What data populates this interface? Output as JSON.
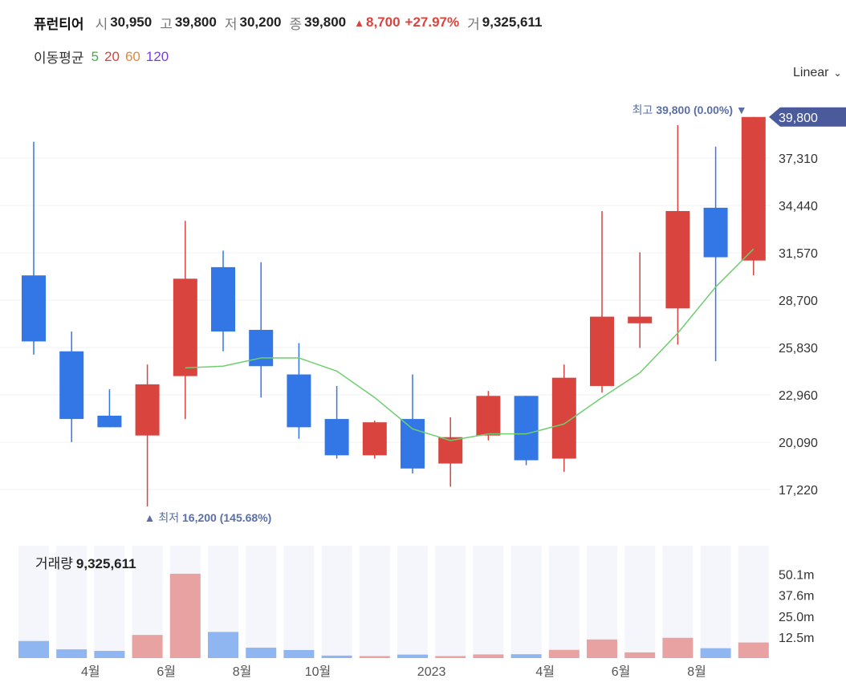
{
  "header": {
    "name": "퓨런티어",
    "open_label": "시",
    "open": "30,950",
    "high_label": "고",
    "high": "39,800",
    "low_label": "저",
    "low": "30,200",
    "close_label": "종",
    "close": "39,800",
    "change": "8,700",
    "change_pct": "+27.97%",
    "volume_label": "거",
    "volume": "9,325,611"
  },
  "moving_avg": {
    "label": "이동평균",
    "periods": [
      {
        "label": "5",
        "color": "#3cb43c"
      },
      {
        "label": "20",
        "color": "#e0403a"
      },
      {
        "label": "60",
        "color": "#e08a3a"
      },
      {
        "label": "120",
        "color": "#7b3ce0"
      }
    ]
  },
  "scale_select": {
    "value": "Linear"
  },
  "colors": {
    "up": "#d9443f",
    "down": "#3377e6",
    "ma": "#6fce6f",
    "axis_badge": "#4a5a9a",
    "annotation": "#5a6fa8"
  },
  "chart_data": {
    "type": "candlestick",
    "x_tick_labels": [
      {
        "index": 2,
        "label": "4월"
      },
      {
        "index": 4,
        "label": "6월"
      },
      {
        "index": 6,
        "label": "8월"
      },
      {
        "index": 8,
        "label": "10월"
      },
      {
        "index": 11,
        "label": "2023"
      },
      {
        "index": 14,
        "label": "4월"
      },
      {
        "index": 16,
        "label": "6월"
      },
      {
        "index": 18,
        "label": "8월"
      }
    ],
    "y_ticks": [
      {
        "value": 37310,
        "label": "37,310"
      },
      {
        "value": 34440,
        "label": "34,440"
      },
      {
        "value": 31570,
        "label": "31,570"
      },
      {
        "value": 28700,
        "label": "28,700"
      },
      {
        "value": 25830,
        "label": "25,830"
      },
      {
        "value": 22960,
        "label": "22,960"
      },
      {
        "value": 20090,
        "label": "20,090"
      },
      {
        "value": 17220,
        "label": "17,220"
      }
    ],
    "y_range": [
      15620,
      40420
    ],
    "last_price_label": "39,800",
    "candles": [
      {
        "open": 30200,
        "close": 26200,
        "high": 38300,
        "low": 25400
      },
      {
        "open": 25600,
        "close": 21500,
        "high": 26800,
        "low": 20100
      },
      {
        "open": 21700,
        "close": 21000,
        "high": 23300,
        "low": 21000
      },
      {
        "open": 20500,
        "close": 23600,
        "high": 24800,
        "low": 16200
      },
      {
        "open": 24100,
        "close": 30000,
        "high": 33500,
        "low": 21500
      },
      {
        "open": 30700,
        "close": 26800,
        "high": 31700,
        "low": 25600
      },
      {
        "open": 26900,
        "close": 24700,
        "high": 31000,
        "low": 22800
      },
      {
        "open": 24200,
        "close": 21000,
        "high": 26100,
        "low": 20300
      },
      {
        "open": 21500,
        "close": 19300,
        "high": 23500,
        "low": 19100
      },
      {
        "open": 19300,
        "close": 21300,
        "high": 21400,
        "low": 19100
      },
      {
        "open": 21500,
        "close": 18500,
        "high": 24200,
        "low": 18200
      },
      {
        "open": 18800,
        "close": 20400,
        "high": 21600,
        "low": 17400
      },
      {
        "open": 20500,
        "close": 22900,
        "high": 23200,
        "low": 20200
      },
      {
        "open": 22900,
        "close": 19000,
        "high": 22900,
        "low": 18700
      },
      {
        "open": 19100,
        "close": 24000,
        "high": 24800,
        "low": 18300
      },
      {
        "open": 23500,
        "close": 27700,
        "high": 34100,
        "low": 23100
      },
      {
        "open": 27300,
        "close": 27700,
        "high": 31600,
        "low": 25800
      },
      {
        "open": 28200,
        "close": 34100,
        "high": 39300,
        "low": 26000
      },
      {
        "open": 34300,
        "close": 31300,
        "high": 38000,
        "low": 25000
      },
      {
        "open": 31100,
        "close": 39800,
        "high": 39800,
        "low": 30200
      }
    ],
    "ma5": [
      null,
      null,
      null,
      null,
      24600,
      24700,
      25200,
      25200,
      24400,
      22800,
      20900,
      20200,
      20600,
      20600,
      21200,
      22800,
      24300,
      26700,
      29500,
      31800
    ],
    "annotations": {
      "high": {
        "label": "최고",
        "value": "39,800",
        "pct": "(0.00%)"
      },
      "low": {
        "label": "최저",
        "value": "16,200",
        "pct": "(145.68%)"
      }
    },
    "volume": {
      "title": "거래량",
      "value": "9,325,611",
      "y_ticks": [
        {
          "value": 50.1,
          "label": "50.1m"
        },
        {
          "value": 37.6,
          "label": "37.6m"
        },
        {
          "value": 25.0,
          "label": "25.0m"
        },
        {
          "value": 12.5,
          "label": "12.5m"
        }
      ],
      "y_max": 67,
      "values": [
        10.2,
        5.2,
        4.3,
        13.8,
        50.3,
        15.6,
        6.2,
        4.8,
        1.5,
        1.2,
        2.1,
        1.2,
        2.2,
        2.3,
        4.9,
        11.1,
        3.4,
        12.1,
        5.9,
        9.3
      ]
    }
  }
}
